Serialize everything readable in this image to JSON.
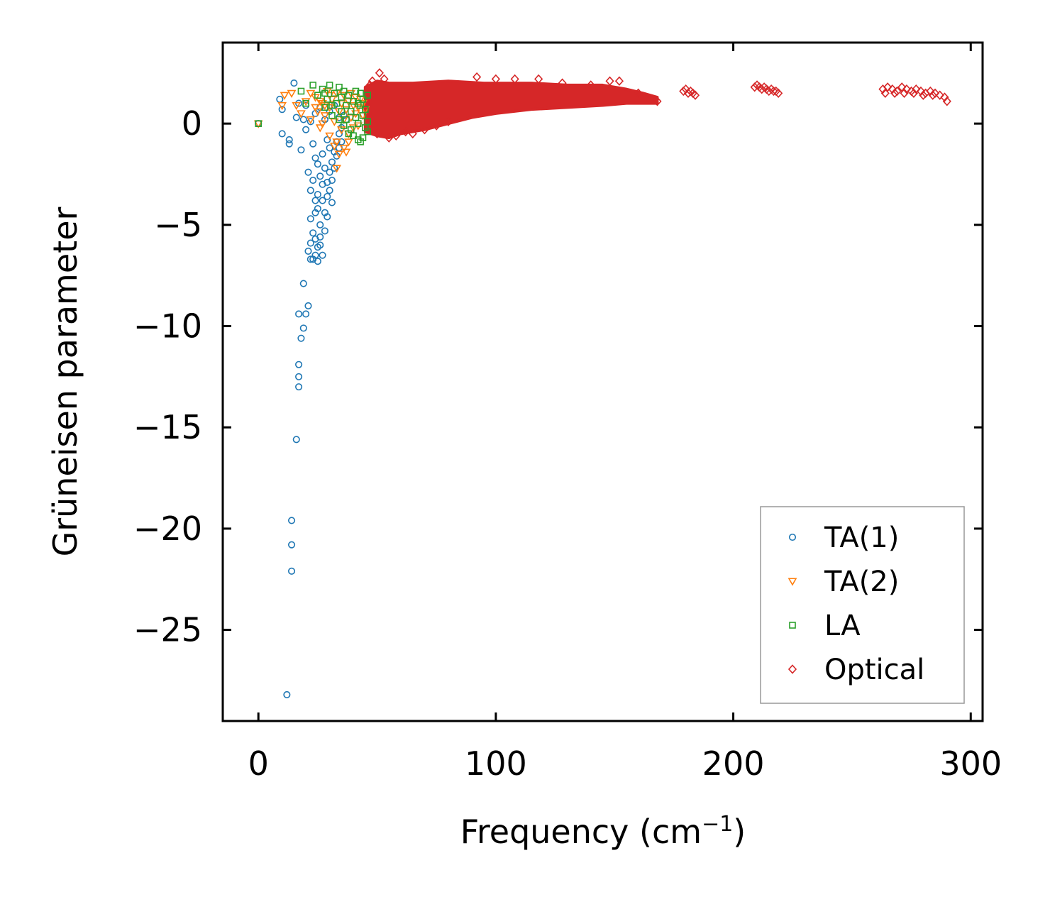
{
  "chart_data": {
    "type": "scatter",
    "xlabel": "Frequency (cm",
    "xlabel_sup": "−1",
    "xlabel_close": ")",
    "ylabel": "Grüneisen parameter",
    "xlim": [
      -15,
      305
    ],
    "ylim": [
      -29.5,
      4.0
    ],
    "xticks": [
      0,
      100,
      200,
      300
    ],
    "xtick_labels": [
      "0",
      "100",
      "200",
      "300"
    ],
    "yticks": [
      0,
      -5,
      -10,
      -15,
      -20,
      -25
    ],
    "ytick_labels": [
      "0",
      "−5",
      "−10",
      "−15",
      "−20",
      "−25"
    ],
    "legend_position": "lower right",
    "series": [
      {
        "name": "TA(1)",
        "marker": "circle",
        "color": "#1f77b4",
        "points": [
          [
            0,
            0
          ],
          [
            9,
            1.2
          ],
          [
            10,
            0.7
          ],
          [
            10,
            -0.5
          ],
          [
            13,
            -0.8
          ],
          [
            13,
            -1.0
          ],
          [
            15,
            2.0
          ],
          [
            16,
            0.3
          ],
          [
            17,
            1.0
          ],
          [
            18,
            -1.3
          ],
          [
            19,
            0.2
          ],
          [
            20,
            -0.3
          ],
          [
            21,
            -2.4
          ],
          [
            22,
            -3.3
          ],
          [
            22,
            -4.7
          ],
          [
            23,
            -1.0
          ],
          [
            23,
            -5.4
          ],
          [
            24,
            -3.8
          ],
          [
            24,
            -6.5
          ],
          [
            25,
            -2.0
          ],
          [
            25,
            -4.2
          ],
          [
            25,
            -6.1
          ],
          [
            26,
            -2.6
          ],
          [
            26,
            -5.0
          ],
          [
            27,
            -1.5
          ],
          [
            27,
            -3.0
          ],
          [
            27,
            -3.8
          ],
          [
            27,
            -6.5
          ],
          [
            28,
            -2.2
          ],
          [
            28,
            -4.4
          ],
          [
            28,
            -5.3
          ],
          [
            29,
            -0.8
          ],
          [
            29,
            -2.9
          ],
          [
            29,
            -3.6
          ],
          [
            29,
            -4.6
          ],
          [
            30,
            -1.2
          ],
          [
            30,
            -2.4
          ],
          [
            30,
            -3.3
          ],
          [
            31,
            -1.9
          ],
          [
            31,
            -2.8
          ],
          [
            31,
            -3.9
          ],
          [
            32,
            -1.4
          ],
          [
            32,
            -2.2
          ],
          [
            33,
            -0.9
          ],
          [
            33,
            -1.6
          ],
          [
            34,
            -0.5
          ],
          [
            34,
            -1.2
          ],
          [
            35,
            -0.2
          ],
          [
            35,
            -0.9
          ],
          [
            36,
            0.4
          ],
          [
            37,
            0.2
          ],
          [
            24,
            0.5
          ],
          [
            26,
            0.8
          ],
          [
            28,
            0.2
          ],
          [
            30,
            0.6
          ],
          [
            32,
            0.9
          ],
          [
            34,
            0.3
          ],
          [
            20,
            0.9
          ],
          [
            22,
            0.1
          ],
          [
            19,
            -7.9
          ],
          [
            20,
            -9.4
          ],
          [
            17,
            -9.4
          ],
          [
            18,
            -10.6
          ],
          [
            19,
            -10.1
          ],
          [
            21,
            -9.0
          ],
          [
            17,
            -11.9
          ],
          [
            17,
            -12.5
          ],
          [
            17,
            -13.0
          ],
          [
            16,
            -15.6
          ],
          [
            14,
            -19.6
          ],
          [
            14,
            -20.8
          ],
          [
            14,
            -22.1
          ],
          [
            12,
            -28.2
          ],
          [
            21,
            -6.3
          ],
          [
            22,
            -5.9
          ],
          [
            23,
            -6.7
          ],
          [
            24,
            -5.7
          ],
          [
            26,
            -5.6
          ],
          [
            26,
            -6.0
          ],
          [
            25,
            -6.8
          ],
          [
            22,
            -6.7
          ],
          [
            24,
            -4.4
          ],
          [
            23,
            -2.8
          ],
          [
            25,
            -3.5
          ],
          [
            24,
            -1.7
          ]
        ]
      },
      {
        "name": "TA(2)",
        "marker": "triangle-down",
        "color": "#ff7f0e",
        "points": [
          [
            0,
            0
          ],
          [
            10,
            0.9
          ],
          [
            11,
            1.4
          ],
          [
            14,
            1.5
          ],
          [
            16,
            0.9
          ],
          [
            18,
            0.5
          ],
          [
            20,
            1.1
          ],
          [
            22,
            0.2
          ],
          [
            24,
            1.3
          ],
          [
            25,
            0.6
          ],
          [
            26,
            -0.2
          ],
          [
            27,
            1.0
          ],
          [
            28,
            0.4
          ],
          [
            29,
            1.6
          ],
          [
            30,
            -0.6
          ],
          [
            30,
            0.8
          ],
          [
            31,
            1.2
          ],
          [
            32,
            0.1
          ],
          [
            33,
            -0.9
          ],
          [
            33,
            1.5
          ],
          [
            34,
            0.6
          ],
          [
            35,
            -0.3
          ],
          [
            35,
            1.0
          ],
          [
            36,
            0.2
          ],
          [
            36,
            1.4
          ],
          [
            37,
            -1.4
          ],
          [
            37,
            0.7
          ],
          [
            38,
            -0.5
          ],
          [
            38,
            1.1
          ],
          [
            39,
            0.3
          ],
          [
            39,
            1.5
          ],
          [
            40,
            -0.2
          ],
          [
            40,
            0.9
          ],
          [
            41,
            0.5
          ],
          [
            41,
            1.3
          ],
          [
            42,
            -0.1
          ],
          [
            42,
            0.8
          ],
          [
            43,
            1.2
          ],
          [
            44,
            0.4
          ],
          [
            44,
            1.0
          ],
          [
            45,
            0.7
          ],
          [
            32,
            -1.1
          ],
          [
            34,
            -1.5
          ],
          [
            36,
            -1.2
          ],
          [
            38,
            -0.9
          ],
          [
            33,
            -2.2
          ],
          [
            28,
            0.9
          ],
          [
            30,
            1.4
          ],
          [
            26,
            1.1
          ],
          [
            24,
            0.8
          ],
          [
            22,
            1.5
          ],
          [
            27,
            0.0
          ]
        ]
      },
      {
        "name": "LA",
        "marker": "square",
        "color": "#2ca02c",
        "points": [
          [
            0,
            0
          ],
          [
            18,
            1.6
          ],
          [
            20,
            1.0
          ],
          [
            23,
            1.9
          ],
          [
            25,
            1.4
          ],
          [
            27,
            1.7
          ],
          [
            28,
            0.8
          ],
          [
            29,
            1.2
          ],
          [
            30,
            1.9
          ],
          [
            31,
            0.4
          ],
          [
            32,
            1.5
          ],
          [
            33,
            1.0
          ],
          [
            34,
            1.8
          ],
          [
            35,
            0.6
          ],
          [
            35,
            1.3
          ],
          [
            36,
            1.6
          ],
          [
            37,
            0.2
          ],
          [
            37,
            0.9
          ],
          [
            38,
            1.4
          ],
          [
            39,
            -0.3
          ],
          [
            39,
            0.6
          ],
          [
            40,
            1.1
          ],
          [
            40,
            -0.6
          ],
          [
            41,
            0.3
          ],
          [
            41,
            1.6
          ],
          [
            42,
            -0.8
          ],
          [
            42,
            0.0
          ],
          [
            43,
            0.9
          ],
          [
            43,
            -0.9
          ],
          [
            44,
            0.4
          ],
          [
            44,
            1.2
          ],
          [
            45,
            -0.2
          ],
          [
            45,
            0.7
          ],
          [
            46,
            1.4
          ],
          [
            46,
            0.1
          ],
          [
            46,
            -0.4
          ],
          [
            44,
            -0.7
          ],
          [
            43,
            1.5
          ],
          [
            42,
            1.0
          ],
          [
            38,
            -0.5
          ],
          [
            36,
            -0.1
          ],
          [
            34,
            0.2
          ],
          [
            31,
            0.9
          ],
          [
            28,
            1.5
          ]
        ]
      },
      {
        "name": "Optical",
        "marker": "diamond",
        "color": "#d62728",
        "band": {
          "x_start": 45,
          "x_end": 168,
          "upper": [
            [
              45,
              1.8
            ],
            [
              50,
              2.1
            ],
            [
              55,
              2.0
            ],
            [
              65,
              2.0
            ],
            [
              80,
              2.1
            ],
            [
              95,
              2.0
            ],
            [
              115,
              2.0
            ],
            [
              130,
              1.9
            ],
            [
              145,
              1.9
            ],
            [
              155,
              1.7
            ],
            [
              162,
              1.5
            ],
            [
              168,
              1.3
            ]
          ],
          "lower": [
            [
              45,
              -0.4
            ],
            [
              50,
              -0.6
            ],
            [
              55,
              -0.7
            ],
            [
              60,
              -0.5
            ],
            [
              70,
              -0.3
            ],
            [
              80,
              0.0
            ],
            [
              90,
              0.3
            ],
            [
              100,
              0.5
            ],
            [
              115,
              0.7
            ],
            [
              130,
              0.8
            ],
            [
              145,
              0.9
            ],
            [
              155,
              1.0
            ],
            [
              162,
              1.0
            ],
            [
              168,
              1.0
            ]
          ]
        },
        "points": [
          [
            51,
            2.5
          ],
          [
            53,
            2.2
          ],
          [
            48,
            2.1
          ],
          [
            47,
            1.9
          ],
          [
            50,
            -0.5
          ],
          [
            55,
            -0.7
          ],
          [
            58,
            -0.6
          ],
          [
            62,
            -0.4
          ],
          [
            65,
            -0.5
          ],
          [
            70,
            -0.3
          ],
          [
            75,
            -0.1
          ],
          [
            80,
            0.1
          ],
          [
            92,
            2.3
          ],
          [
            100,
            2.2
          ],
          [
            108,
            2.2
          ],
          [
            118,
            2.2
          ],
          [
            128,
            2.0
          ],
          [
            140,
            1.9
          ],
          [
            148,
            2.1
          ],
          [
            152,
            2.1
          ],
          [
            160,
            1.5
          ],
          [
            165,
            1.2
          ],
          [
            168,
            1.1
          ],
          [
            180,
            1.7
          ],
          [
            181,
            1.5
          ],
          [
            182,
            1.6
          ],
          [
            183,
            1.5
          ],
          [
            184,
            1.4
          ],
          [
            179,
            1.6
          ],
          [
            209,
            1.8
          ],
          [
            210,
            1.9
          ],
          [
            211,
            1.8
          ],
          [
            212,
            1.7
          ],
          [
            213,
            1.8
          ],
          [
            214,
            1.7
          ],
          [
            215,
            1.6
          ],
          [
            216,
            1.7
          ],
          [
            217,
            1.6
          ],
          [
            218,
            1.6
          ],
          [
            219,
            1.5
          ],
          [
            263,
            1.7
          ],
          [
            265,
            1.8
          ],
          [
            267,
            1.7
          ],
          [
            269,
            1.6
          ],
          [
            271,
            1.8
          ],
          [
            273,
            1.7
          ],
          [
            275,
            1.6
          ],
          [
            277,
            1.7
          ],
          [
            279,
            1.6
          ],
          [
            281,
            1.5
          ],
          [
            283,
            1.6
          ],
          [
            285,
            1.5
          ],
          [
            287,
            1.4
          ],
          [
            289,
            1.3
          ],
          [
            290,
            1.1
          ],
          [
            264,
            1.5
          ],
          [
            268,
            1.5
          ],
          [
            272,
            1.5
          ],
          [
            276,
            1.5
          ],
          [
            280,
            1.4
          ],
          [
            284,
            1.4
          ]
        ]
      }
    ]
  }
}
